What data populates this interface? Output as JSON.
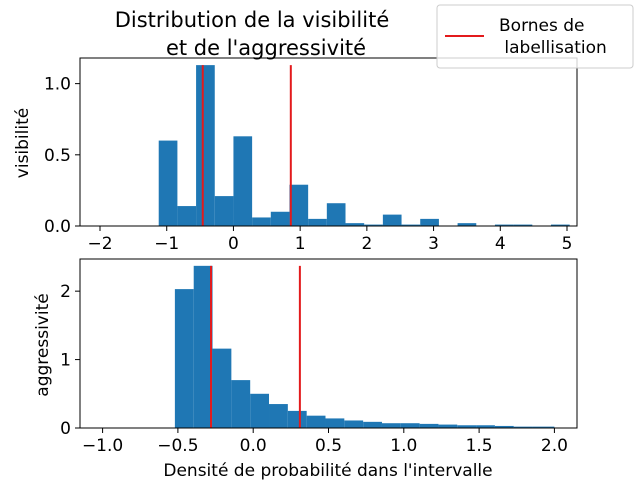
{
  "figure": {
    "title_line1": "Distribution de la visibilité",
    "title_line2": "et de l'aggressivité"
  },
  "legend": {
    "label_line1": "Bornes de",
    "label_line2": " labellisation",
    "line_color": "#e31a1c",
    "placement": "upper right (outside axes)"
  },
  "colors": {
    "bar": "#1f77b4",
    "bound_line": "#e31a1c"
  },
  "chart_data": [
    {
      "type": "bar",
      "ylabel": "visibilité",
      "xlabel": "",
      "xlim": [
        -2.3,
        5.15
      ],
      "ylim": [
        0,
        1.18
      ],
      "xticks": [
        -2,
        -1,
        0,
        1,
        2,
        3,
        4,
        5
      ],
      "xtick_labels": [
        "−2",
        "−1",
        "0",
        "1",
        "2",
        "3",
        "4",
        "5"
      ],
      "yticks": [
        0,
        0.5,
        1
      ],
      "ytick_labels": [
        "0.0",
        "0.5",
        "1.0"
      ],
      "bin_edges": [
        -1.12,
        -0.84,
        -0.56,
        -0.28,
        0.0,
        0.28,
        0.56,
        0.84,
        1.12,
        1.4,
        1.68,
        1.96,
        2.24,
        2.52,
        2.8,
        3.08,
        3.36,
        3.64,
        3.92,
        4.2,
        4.48,
        4.76,
        5.04
      ],
      "values": [
        0.6,
        0.14,
        1.13,
        0.21,
        0.63,
        0.06,
        0.1,
        0.29,
        0.05,
        0.16,
        0.02,
        0.01,
        0.08,
        0.01,
        0.05,
        0.0,
        0.02,
        0.0,
        0.01,
        0.01,
        0.0,
        0.01
      ],
      "bounds": [
        -0.46,
        0.86
      ],
      "bounds_ymax": 1.13,
      "grid": false
    },
    {
      "type": "bar",
      "ylabel": "aggressivité",
      "xlabel": "Densité de probabilité dans l'intervalle",
      "xlim": [
        -1.15,
        2.15
      ],
      "ylim": [
        0,
        2.47
      ],
      "xticks": [
        -1.0,
        -0.5,
        0.0,
        0.5,
        1.0,
        1.5,
        2.0
      ],
      "xtick_labels": [
        "−1.0",
        "−0.5",
        "0.0",
        "0.5",
        "1.0",
        "1.5",
        "2.0"
      ],
      "yticks": [
        0,
        1,
        2
      ],
      "ytick_labels": [
        "0",
        "1",
        "2"
      ],
      "bin_edges": [
        -0.52,
        -0.395,
        -0.27,
        -0.145,
        -0.02,
        0.105,
        0.23,
        0.355,
        0.48,
        0.605,
        0.73,
        0.855,
        0.98,
        1.105,
        1.23,
        1.355,
        1.48,
        1.605,
        1.73,
        1.855,
        2.0
      ],
      "values": [
        2.03,
        2.37,
        1.16,
        0.7,
        0.5,
        0.35,
        0.25,
        0.18,
        0.14,
        0.11,
        0.09,
        0.07,
        0.07,
        0.06,
        0.05,
        0.04,
        0.04,
        0.03,
        0.02,
        0.02
      ],
      "bounds": [
        -0.28,
        0.31
      ],
      "bounds_ymax": 2.37,
      "grid": false
    }
  ]
}
